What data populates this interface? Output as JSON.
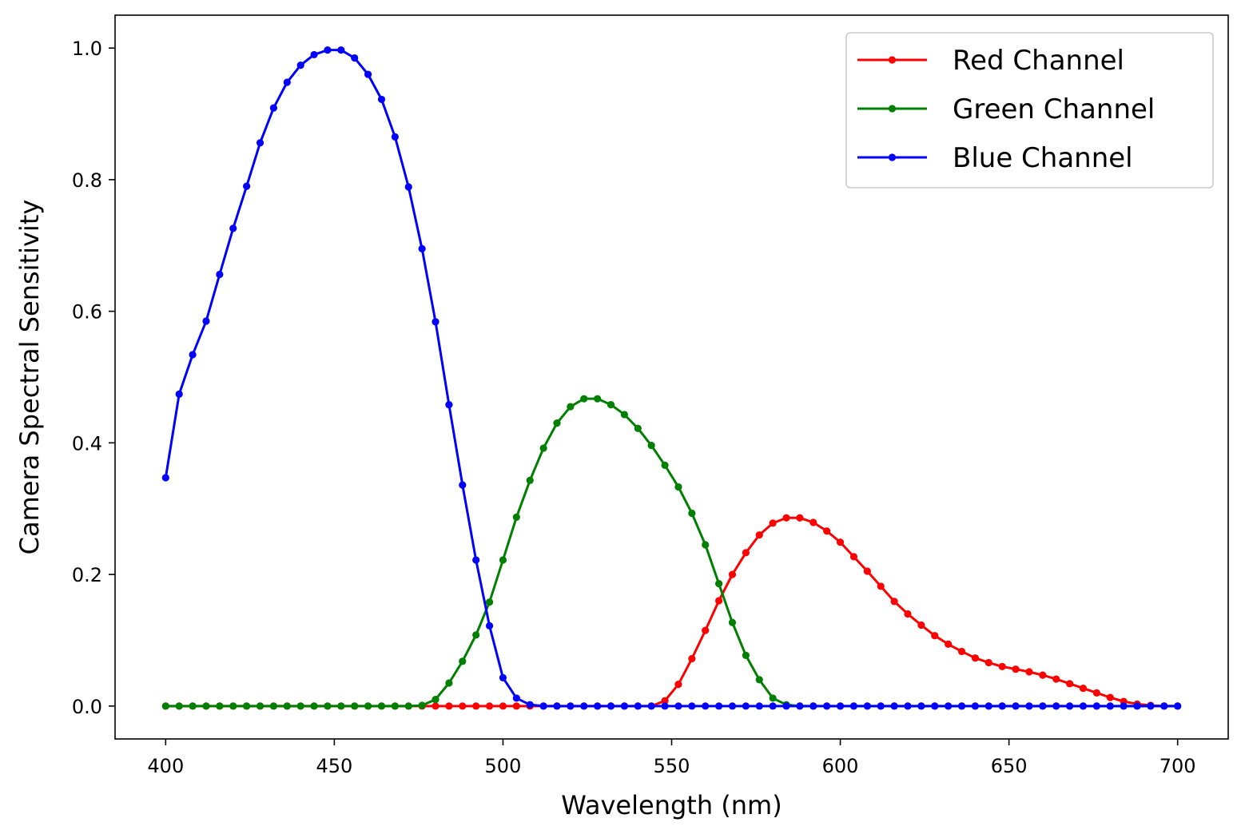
{
  "chart_data": {
    "type": "line",
    "xlabel": "Wavelength (nm)",
    "ylabel": "Camera Spectral Sensitivity",
    "xlim": [
      385,
      715
    ],
    "ylim": [
      -0.05,
      1.05
    ],
    "xticks": [
      400,
      450,
      500,
      550,
      600,
      650,
      700
    ],
    "yticks": [
      0.0,
      0.2,
      0.4,
      0.6,
      0.8,
      1.0
    ],
    "xtick_labels": [
      "400",
      "450",
      "500",
      "550",
      "600",
      "650",
      "700"
    ],
    "ytick_labels": [
      "0.0",
      "0.2",
      "0.4",
      "0.6",
      "0.8",
      "1.0"
    ],
    "grid": false,
    "legend_position": "top-right",
    "marker": "circle",
    "x": [
      400,
      404,
      408,
      412,
      416,
      420,
      424,
      428,
      432,
      436,
      440,
      444,
      448,
      452,
      456,
      460,
      464,
      468,
      472,
      476,
      480,
      484,
      488,
      492,
      496,
      500,
      504,
      508,
      512,
      516,
      520,
      524,
      528,
      532,
      536,
      540,
      544,
      548,
      552,
      556,
      560,
      564,
      568,
      572,
      576,
      580,
      584,
      588,
      592,
      596,
      600,
      604,
      608,
      612,
      616,
      620,
      624,
      628,
      632,
      636,
      640,
      644,
      648,
      652,
      656,
      660,
      664,
      668,
      672,
      676,
      680,
      684,
      688,
      692,
      696,
      700
    ],
    "series": [
      {
        "name": "Red Channel",
        "color": "#ff0000",
        "values": [
          0,
          0,
          0,
          0,
          0,
          0,
          0,
          0,
          0,
          0,
          0,
          0,
          0,
          0,
          0,
          0,
          0,
          0,
          0,
          0,
          0,
          0,
          0,
          0,
          0,
          0,
          0,
          0,
          0,
          0,
          0,
          0,
          0,
          0,
          0,
          0,
          0,
          0.008,
          0.033,
          0.072,
          0.115,
          0.16,
          0.2,
          0.233,
          0.26,
          0.278,
          0.286,
          0.286,
          0.279,
          0.266,
          0.249,
          0.227,
          0.205,
          0.182,
          0.159,
          0.14,
          0.123,
          0.107,
          0.094,
          0.083,
          0.073,
          0.066,
          0.06,
          0.056,
          0.052,
          0.047,
          0.041,
          0.034,
          0.027,
          0.02,
          0.013,
          0.007,
          0.003,
          0.001,
          0,
          0
        ]
      },
      {
        "name": "Green Channel",
        "color": "#008000",
        "values": [
          0,
          0,
          0,
          0,
          0,
          0,
          0,
          0,
          0,
          0,
          0,
          0,
          0,
          0,
          0,
          0,
          0,
          0,
          0,
          0.001,
          0.01,
          0.035,
          0.068,
          0.108,
          0.158,
          0.222,
          0.287,
          0.343,
          0.392,
          0.43,
          0.455,
          0.467,
          0.467,
          0.458,
          0.443,
          0.422,
          0.396,
          0.366,
          0.333,
          0.293,
          0.245,
          0.186,
          0.127,
          0.077,
          0.04,
          0.012,
          0.002,
          0,
          0,
          0,
          0,
          0,
          0,
          0,
          0,
          0,
          0,
          0,
          0,
          0,
          0,
          0,
          0,
          0,
          0,
          0,
          0,
          0,
          0,
          0,
          0,
          0,
          0,
          0,
          0,
          0
        ]
      },
      {
        "name": "Blue Channel",
        "color": "#0000ff",
        "values": [
          0.347,
          0.474,
          0.534,
          0.585,
          0.656,
          0.726,
          0.79,
          0.856,
          0.909,
          0.948,
          0.974,
          0.99,
          0.997,
          0.997,
          0.985,
          0.96,
          0.922,
          0.865,
          0.789,
          0.695,
          0.584,
          0.458,
          0.336,
          0.222,
          0.122,
          0.043,
          0.012,
          0.002,
          0,
          0,
          0,
          0,
          0,
          0,
          0,
          0,
          0,
          0,
          0,
          0,
          0,
          0,
          0,
          0,
          0,
          0,
          0,
          0,
          0,
          0,
          0,
          0,
          0,
          0,
          0,
          0,
          0,
          0,
          0,
          0,
          0,
          0,
          0,
          0,
          0,
          0,
          0,
          0,
          0,
          0,
          0,
          0,
          0,
          0,
          0,
          0
        ]
      }
    ]
  }
}
